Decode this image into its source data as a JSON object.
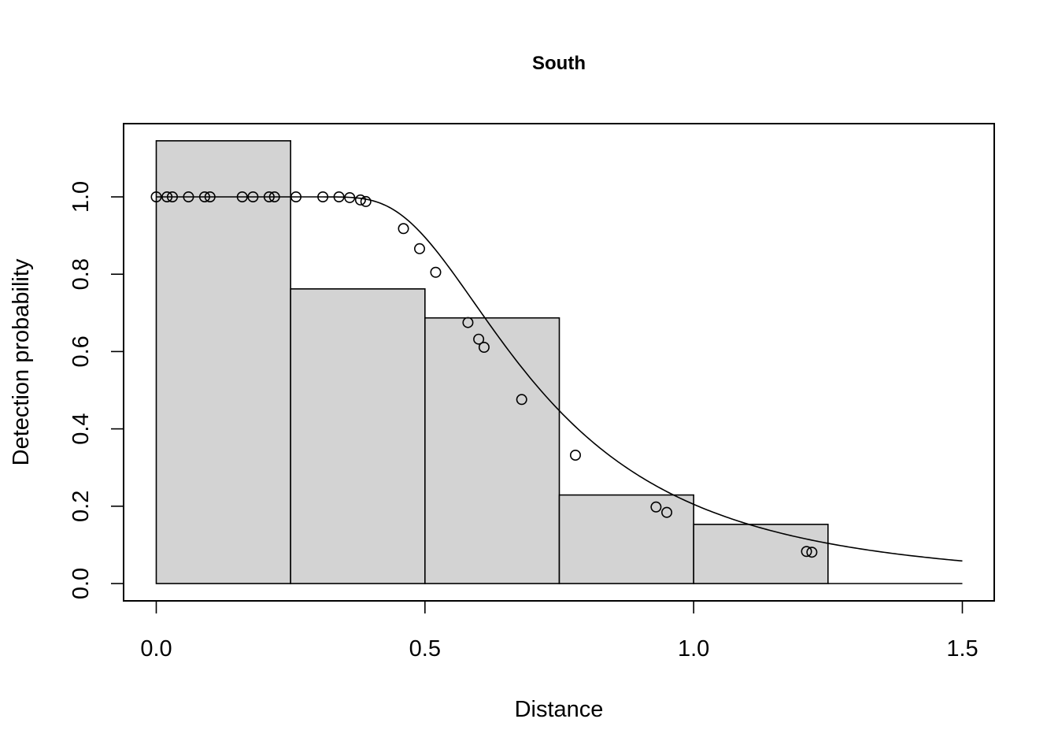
{
  "chart_data": {
    "type": "bar",
    "title": "South",
    "xlabel": "Distance",
    "ylabel": "Detection probability",
    "xlim": [
      0,
      1.5
    ],
    "ylim": [
      0,
      1.14
    ],
    "x_ticks": [
      "0.0",
      "0.5",
      "1.0",
      "1.5"
    ],
    "y_ticks": [
      "0.0",
      "0.2",
      "0.4",
      "0.6",
      "0.8",
      "1.0"
    ],
    "histogram": {
      "bins": [
        [
          0,
          0.25
        ],
        [
          0.25,
          0.5
        ],
        [
          0.5,
          0.75
        ],
        [
          0.75,
          1.0
        ],
        [
          1.0,
          1.25
        ],
        [
          1.25,
          1.5
        ]
      ],
      "values": [
        1.145,
        0.762,
        0.687,
        0.229,
        0.153,
        0
      ]
    },
    "fitted_curve": {
      "model": "hazard-rate",
      "sigma": 0.64,
      "shape": 3.3
    },
    "points": [
      {
        "x": 0.0,
        "y": 1.0
      },
      {
        "x": 0.02,
        "y": 1.0
      },
      {
        "x": 0.03,
        "y": 1.0
      },
      {
        "x": 0.06,
        "y": 1.0
      },
      {
        "x": 0.09,
        "y": 1.0
      },
      {
        "x": 0.1,
        "y": 1.0
      },
      {
        "x": 0.16,
        "y": 1.0
      },
      {
        "x": 0.18,
        "y": 1.0
      },
      {
        "x": 0.21,
        "y": 1.0
      },
      {
        "x": 0.22,
        "y": 1.0
      },
      {
        "x": 0.26,
        "y": 1.0
      },
      {
        "x": 0.31,
        "y": 1.0
      },
      {
        "x": 0.34,
        "y": 1.0
      },
      {
        "x": 0.36,
        "y": 0.998
      },
      {
        "x": 0.38,
        "y": 0.992
      },
      {
        "x": 0.39,
        "y": 0.988
      },
      {
        "x": 0.46,
        "y": 0.918
      },
      {
        "x": 0.49,
        "y": 0.866
      },
      {
        "x": 0.52,
        "y": 0.805
      },
      {
        "x": 0.58,
        "y": 0.675
      },
      {
        "x": 0.6,
        "y": 0.632
      },
      {
        "x": 0.61,
        "y": 0.611
      },
      {
        "x": 0.68,
        "y": 0.476
      },
      {
        "x": 0.78,
        "y": 0.332
      },
      {
        "x": 0.93,
        "y": 0.198
      },
      {
        "x": 0.95,
        "y": 0.184
      },
      {
        "x": 1.21,
        "y": 0.083
      },
      {
        "x": 1.22,
        "y": 0.081
      }
    ],
    "colors": {
      "bar_fill": "#d3d3d3",
      "stroke": "#000000"
    }
  }
}
